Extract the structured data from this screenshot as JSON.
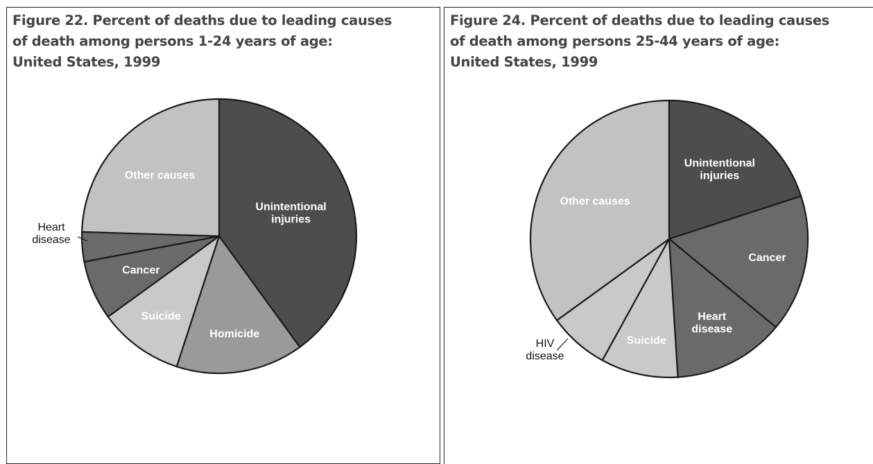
{
  "chart_data": [
    {
      "type": "pie",
      "title": "Figure 22. Percent of deaths due to leading causes of death among persons 1-24 years of age: United States, 1999",
      "title_lines": [
        "Figure 22. Percent of deaths due to leading causes",
        "of death among persons 1-24 years of age:",
        "United States, 1999"
      ],
      "slices": [
        {
          "label": "Unintentional injuries",
          "label_lines": [
            "Unintentional",
            "injuries"
          ],
          "value": 40,
          "color": "#4d4d4d"
        },
        {
          "label": "Homicide",
          "label_lines": [
            "Homicide"
          ],
          "value": 15,
          "color": "#9a9a9a"
        },
        {
          "label": "Suicide",
          "label_lines": [
            "Suicide"
          ],
          "value": 10,
          "color": "#c9c9c9"
        },
        {
          "label": "Cancer",
          "label_lines": [
            "Cancer"
          ],
          "value": 7,
          "color": "#6a6a6a"
        },
        {
          "label": "Heart disease",
          "label_lines": [
            "Heart",
            "disease"
          ],
          "value": 3.5,
          "color": "#6a6a6a"
        },
        {
          "label": "Other causes",
          "label_lines": [
            "Other causes"
          ],
          "value": 24.5,
          "color": "#c2c2c2"
        }
      ]
    },
    {
      "type": "pie",
      "title": "Figure 24. Percent of deaths due to leading causes of death among persons 25-44 years of age: United States, 1999",
      "title_lines": [
        "Figure 24. Percent of deaths due to leading causes",
        "of death among persons 25-44 years of age:",
        "United States, 1999"
      ],
      "slices": [
        {
          "label": "Unintentional injuries",
          "label_lines": [
            "Unintentional",
            "injuries"
          ],
          "value": 20,
          "color": "#4d4d4d"
        },
        {
          "label": "Cancer",
          "label_lines": [
            "Cancer"
          ],
          "value": 16,
          "color": "#6a6a6a"
        },
        {
          "label": "Heart disease",
          "label_lines": [
            "Heart",
            "disease"
          ],
          "value": 13,
          "color": "#6a6a6a"
        },
        {
          "label": "Suicide",
          "label_lines": [
            "Suicide"
          ],
          "value": 9,
          "color": "#c9c9c9"
        },
        {
          "label": "HIV disease",
          "label_lines": [
            "HIV",
            "disease"
          ],
          "value": 7,
          "color": "#c9c9c9"
        },
        {
          "label": "Other causes",
          "label_lines": [
            "Other causes"
          ],
          "value": 35,
          "color": "#c2c2c2"
        }
      ]
    }
  ]
}
